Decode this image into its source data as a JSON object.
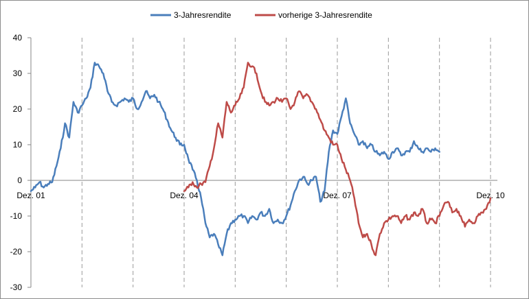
{
  "chart_data": {
    "type": "line",
    "title": "",
    "xlabel": "",
    "ylabel": "",
    "ylim": [
      -30,
      40
    ],
    "yticks": [
      40,
      30,
      20,
      10,
      0,
      -10,
      -20,
      -30
    ],
    "x_range": [
      "Dez. 01",
      "Dez. 10"
    ],
    "x_tick_labels": [
      "Dez. 01",
      "Dez. 04",
      "Dez. 07",
      "Dez. 10"
    ],
    "vertical_gridlines": "dashed, yearly",
    "legend_position": "top-center",
    "series": [
      {
        "name": "3-Jahresrendite",
        "color": "#4a7ebb",
        "points": [
          [
            "Dez. 01",
            -3
          ],
          [
            "Jan. 02",
            -2
          ],
          [
            "Feb. 02",
            -0.5
          ],
          [
            "Mrz. 02",
            -2
          ],
          [
            "Apr. 02",
            -1
          ],
          [
            "Mai 02",
            -0.5
          ],
          [
            "Jun. 02",
            4
          ],
          [
            "Jul. 02",
            9
          ],
          [
            "Aug. 02",
            16
          ],
          [
            "Sep. 02",
            12
          ],
          [
            "Okt. 02",
            22
          ],
          [
            "Nov. 02",
            19
          ],
          [
            "Dez. 02",
            21
          ],
          [
            "Jan. 03",
            23
          ],
          [
            "Feb. 03",
            26
          ],
          [
            "Mrz. 03",
            33
          ],
          [
            "Apr. 03",
            32
          ],
          [
            "Mai 03",
            30
          ],
          [
            "Jun. 03",
            25
          ],
          [
            "Jul. 03",
            22
          ],
          [
            "Aug. 03",
            21
          ],
          [
            "Sep. 03",
            22
          ],
          [
            "Okt. 03",
            23
          ],
          [
            "Nov. 03",
            22
          ],
          [
            "Dez. 03",
            23
          ],
          [
            "Jan. 04",
            20
          ],
          [
            "Feb. 04",
            22
          ],
          [
            "Mrz. 04",
            25
          ],
          [
            "Apr. 04",
            23
          ],
          [
            "Mai 04",
            24
          ],
          [
            "Jun. 04",
            22
          ],
          [
            "Jul. 04",
            20
          ],
          [
            "Aug. 04",
            17
          ],
          [
            "Sep. 04",
            14
          ],
          [
            "Okt. 04",
            12
          ],
          [
            "Nov. 04",
            10
          ],
          [
            "Dez. 04",
            10
          ],
          [
            "Jan. 05",
            6
          ],
          [
            "Feb. 05",
            3
          ],
          [
            "Mrz. 05",
            0
          ],
          [
            "Apr. 05",
            -5
          ],
          [
            "Mai 05",
            -12
          ],
          [
            "Jun. 05",
            -16
          ],
          [
            "Jul. 05",
            -15
          ],
          [
            "Aug. 05",
            -18
          ],
          [
            "Sep. 05",
            -21
          ],
          [
            "Okt. 05",
            -15
          ],
          [
            "Nov. 05",
            -12
          ],
          [
            "Dez. 05",
            -11
          ],
          [
            "Jan. 06",
            -10
          ],
          [
            "Feb. 06",
            -10
          ],
          [
            "Mrz. 06",
            -12
          ],
          [
            "Apr. 06",
            -10
          ],
          [
            "Mai 06",
            -11
          ],
          [
            "Jun. 06",
            -9
          ],
          [
            "Jul. 06",
            -10
          ],
          [
            "Aug. 06",
            -8
          ],
          [
            "Sep. 06",
            -12
          ],
          [
            "Okt. 06",
            -11
          ],
          [
            "Nov. 06",
            -12
          ],
          [
            "Dez. 06",
            -10
          ],
          [
            "Jan. 07",
            -7
          ],
          [
            "Feb. 07",
            -3
          ],
          [
            "Mrz. 07",
            0
          ],
          [
            "Apr. 07",
            1
          ],
          [
            "Mai 07",
            -1
          ],
          [
            "Jun. 07",
            0
          ],
          [
            "Jul. 07",
            1
          ],
          [
            "Aug. 07",
            -6
          ],
          [
            "Sep. 07",
            -3
          ],
          [
            "Okt. 07",
            8
          ],
          [
            "Nov. 07",
            14
          ],
          [
            "Dez. 07",
            13
          ],
          [
            "Jan. 08",
            18
          ],
          [
            "Feb. 08",
            23
          ],
          [
            "Mrz. 08",
            16
          ],
          [
            "Apr. 08",
            13
          ],
          [
            "Mai 08",
            10
          ],
          [
            "Jun. 08",
            11
          ],
          [
            "Jul. 08",
            9
          ],
          [
            "Aug. 08",
            10
          ],
          [
            "Sep. 08",
            8
          ],
          [
            "Okt. 08",
            7
          ],
          [
            "Nov. 08",
            8
          ],
          [
            "Dez. 08",
            6
          ],
          [
            "Jan. 09",
            8
          ],
          [
            "Feb. 09",
            9
          ],
          [
            "Mrz. 09",
            7
          ],
          [
            "Apr. 09",
            8
          ],
          [
            "Mai 09",
            8
          ],
          [
            "Jun. 09",
            11
          ],
          [
            "Jul. 09",
            9
          ],
          [
            "Aug. 09",
            8
          ],
          [
            "Sep. 09",
            9
          ],
          [
            "Okt. 09",
            8
          ],
          [
            "Nov. 09",
            9
          ],
          [
            "Dez. 09",
            8
          ]
        ]
      },
      {
        "name": "vorherige 3-Jahresrendite",
        "color": "#be4b48",
        "points": [
          [
            "Dez. 04",
            -3
          ],
          [
            "Jan. 05",
            -2
          ],
          [
            "Feb. 05",
            -0.5
          ],
          [
            "Mrz. 05",
            -2
          ],
          [
            "Apr. 05",
            -1
          ],
          [
            "Mai 05",
            -0.5
          ],
          [
            "Jun. 05",
            4
          ],
          [
            "Jul. 05",
            9
          ],
          [
            "Aug. 05",
            16
          ],
          [
            "Sep. 05",
            12
          ],
          [
            "Okt. 05",
            22
          ],
          [
            "Nov. 05",
            19
          ],
          [
            "Dez. 05",
            21
          ],
          [
            "Jan. 06",
            23
          ],
          [
            "Feb. 06",
            26
          ],
          [
            "Mrz. 06",
            33
          ],
          [
            "Apr. 06",
            32
          ],
          [
            "Mai 06",
            30
          ],
          [
            "Jun. 06",
            25
          ],
          [
            "Jul. 06",
            22
          ],
          [
            "Aug. 06",
            21
          ],
          [
            "Sep. 06",
            22
          ],
          [
            "Okt. 06",
            23
          ],
          [
            "Nov. 06",
            22
          ],
          [
            "Dez. 06",
            23
          ],
          [
            "Jan. 07",
            20
          ],
          [
            "Feb. 07",
            22
          ],
          [
            "Mrz. 07",
            25
          ],
          [
            "Apr. 07",
            23
          ],
          [
            "Mai 07",
            24
          ],
          [
            "Jun. 07",
            22
          ],
          [
            "Jul. 07",
            20
          ],
          [
            "Aug. 07",
            17
          ],
          [
            "Sep. 07",
            14
          ],
          [
            "Okt. 07",
            12
          ],
          [
            "Nov. 07",
            10
          ],
          [
            "Dez. 07",
            10
          ],
          [
            "Jan. 08",
            6
          ],
          [
            "Feb. 08",
            3
          ],
          [
            "Mrz. 08",
            0
          ],
          [
            "Apr. 08",
            -5
          ],
          [
            "Mai 08",
            -12
          ],
          [
            "Jun. 08",
            -16
          ],
          [
            "Jul. 08",
            -15
          ],
          [
            "Aug. 08",
            -18
          ],
          [
            "Sep. 08",
            -21
          ],
          [
            "Okt. 08",
            -15
          ],
          [
            "Nov. 08",
            -12
          ],
          [
            "Dez. 08",
            -11
          ],
          [
            "Jan. 09",
            -10
          ],
          [
            "Feb. 09",
            -10
          ],
          [
            "Mrz. 09",
            -12
          ],
          [
            "Apr. 09",
            -10
          ],
          [
            "Mai 09",
            -11
          ],
          [
            "Jun. 09",
            -9
          ],
          [
            "Jul. 09",
            -10
          ],
          [
            "Aug. 09",
            -8
          ],
          [
            "Sep. 09",
            -12
          ],
          [
            "Okt. 09",
            -11
          ],
          [
            "Nov. 09",
            -12
          ],
          [
            "Dez. 09",
            -10
          ],
          [
            "Jan. 10",
            -7
          ],
          [
            "Feb. 10",
            -6
          ],
          [
            "Mrz. 10",
            -9
          ],
          [
            "Apr. 10",
            -8
          ],
          [
            "Mai 10",
            -10
          ],
          [
            "Jun. 10",
            -13
          ],
          [
            "Jul. 10",
            -11
          ],
          [
            "Aug. 10",
            -12
          ],
          [
            "Sep. 10",
            -10
          ],
          [
            "Okt. 10",
            -9
          ],
          [
            "Nov. 10",
            -8
          ],
          [
            "Dez. 10",
            -5
          ]
        ]
      }
    ]
  }
}
